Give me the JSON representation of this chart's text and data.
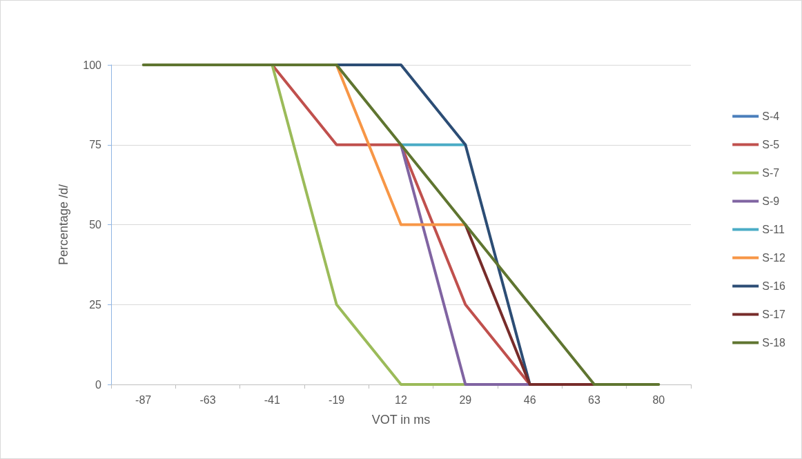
{
  "chart_data": {
    "type": "line",
    "xlabel": "VOT in ms",
    "ylabel": "Percentage /d/",
    "categories": [
      "-87",
      "-63",
      "-41",
      "-19",
      "12",
      "29",
      "46",
      "63",
      "80"
    ],
    "ylim": [
      0,
      100
    ],
    "yticks": [
      0,
      25,
      50,
      75,
      100
    ],
    "grid": "y",
    "legend": "right",
    "marker": "none",
    "line_style": "solid",
    "series": [
      {
        "name": "S-4",
        "color": "#4a7ebb",
        "values": [
          null,
          null,
          null,
          null,
          null,
          null,
          null,
          null,
          null
        ]
      },
      {
        "name": "S-5",
        "color": "#c0504d",
        "values": [
          null,
          null,
          100,
          75,
          75,
          25,
          0,
          null,
          null
        ]
      },
      {
        "name": "S-7",
        "color": "#9bbb59",
        "values": [
          null,
          null,
          100,
          25,
          0,
          0,
          null,
          null,
          null
        ]
      },
      {
        "name": "S-9",
        "color": "#8064a2",
        "values": [
          null,
          null,
          null,
          null,
          75,
          0,
          0,
          null,
          null
        ]
      },
      {
        "name": "S-11",
        "color": "#4bacc6",
        "values": [
          null,
          null,
          null,
          null,
          75,
          75,
          null,
          null,
          null
        ]
      },
      {
        "name": "S-12",
        "color": "#f79646",
        "values": [
          null,
          null,
          null,
          100,
          50,
          50,
          null,
          null,
          null
        ]
      },
      {
        "name": "S-16",
        "color": "#2c4d75",
        "values": [
          null,
          null,
          null,
          100,
          100,
          75,
          0,
          null,
          null
        ]
      },
      {
        "name": "S-17",
        "color": "#772c2a",
        "values": [
          null,
          null,
          null,
          null,
          null,
          50,
          0,
          0,
          null
        ]
      },
      {
        "name": "S-18",
        "color": "#5f7530",
        "values": [
          100,
          100,
          100,
          100,
          75,
          50,
          25,
          0,
          0
        ]
      }
    ]
  }
}
